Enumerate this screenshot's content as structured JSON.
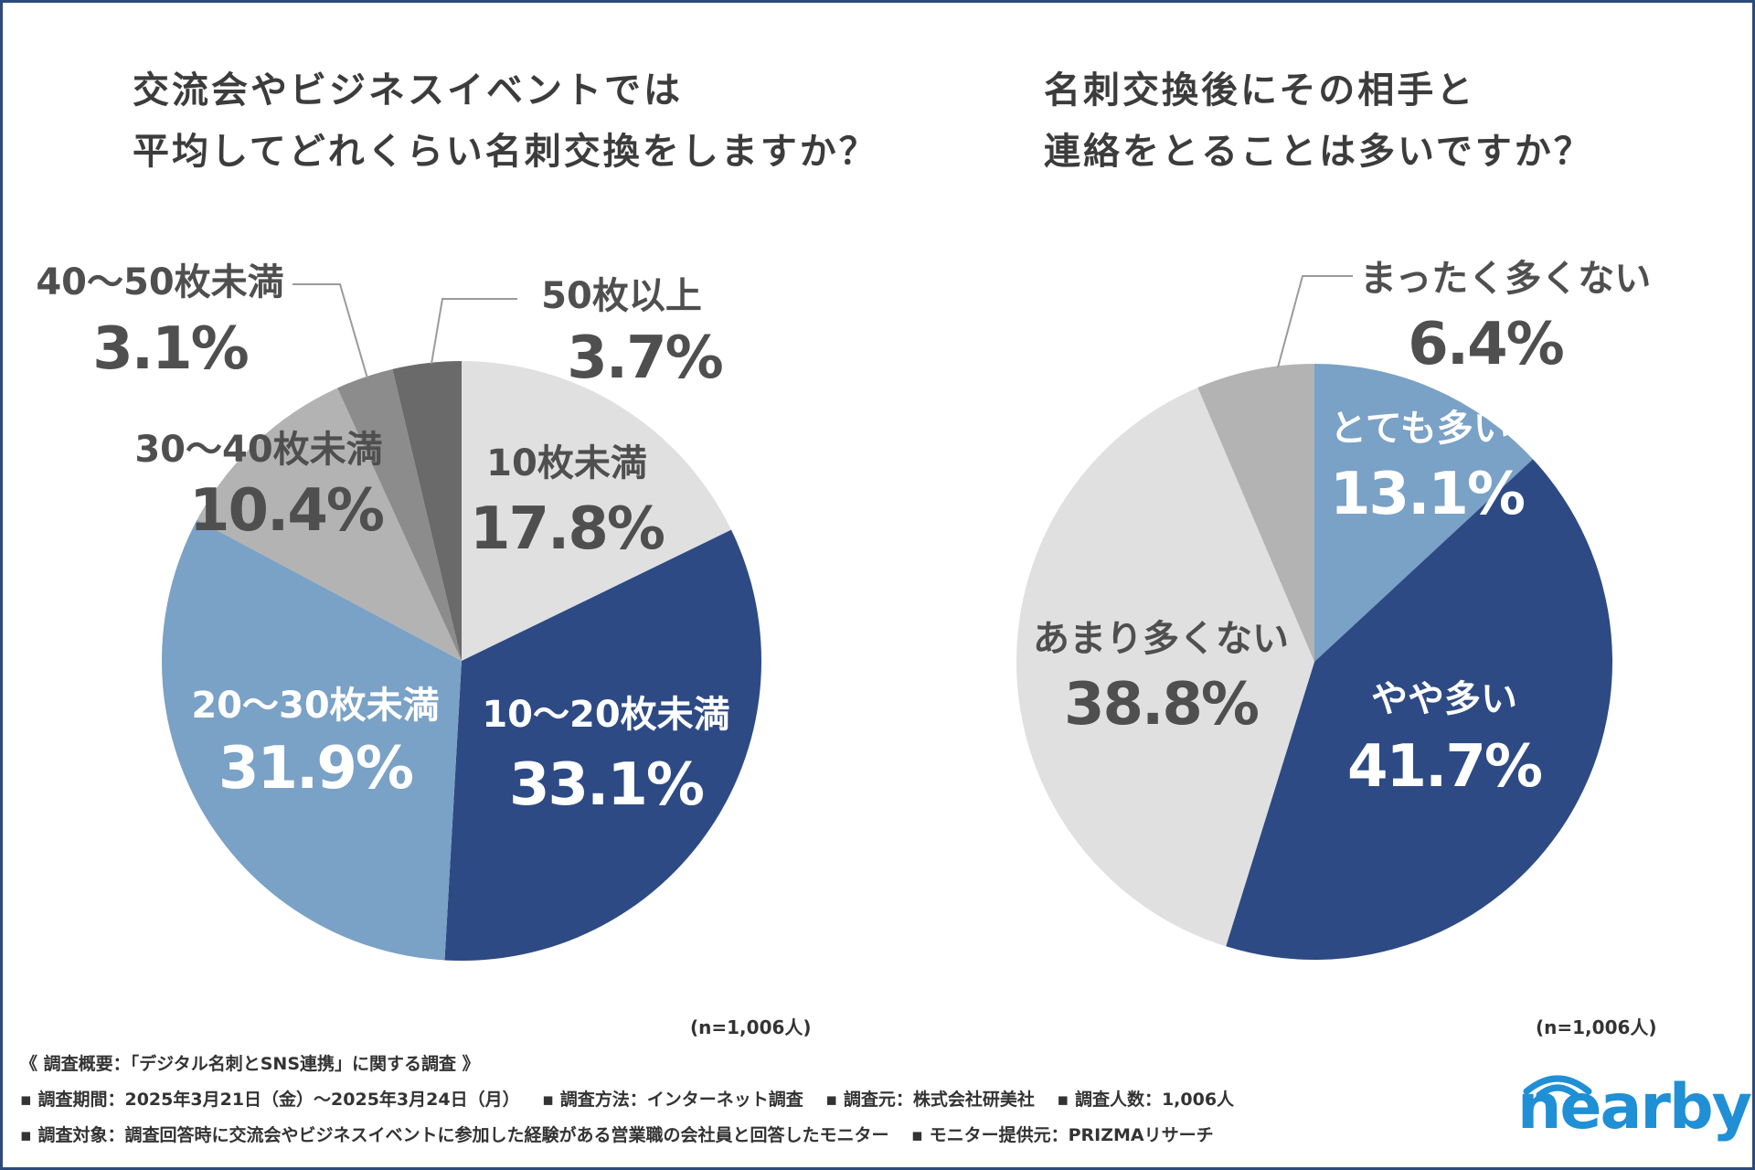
{
  "colors": {
    "navy": "#2d4a84",
    "steel": "#7aa1c6",
    "light": "#e0e0e0",
    "mid": "#b3b3b3",
    "dark": "#8c8c8c",
    "darkest": "#6a6a6a",
    "white_text": "#ffffff",
    "grey_text": "#4f4f4f",
    "logo": "#1f8fd6"
  },
  "left_title": {
    "line1": "交流会やビジネスイベントでは",
    "line2": "平均してどれくらい名刺交換をしますか？"
  },
  "right_title": {
    "line1": "名刺交換後にその相手と",
    "line2": "連絡をとることは多いですか？"
  },
  "chart_data": [
    {
      "type": "pie",
      "title": "交流会やビジネスイベントでは平均してどれくらい名刺交換をしますか？",
      "start": "12 o'clock, clockwise",
      "categories": [
        "10枚未満",
        "10〜20枚未満",
        "20〜30枚未満",
        "30〜40枚未満",
        "40〜50枚未満",
        "50枚以上"
      ],
      "values": [
        17.8,
        33.1,
        31.9,
        10.4,
        3.1,
        3.7
      ],
      "value_labels": [
        "17.8%",
        "33.1%",
        "31.9%",
        "10.4%",
        "3.1%",
        "3.7%"
      ],
      "color_keys": [
        "light",
        "navy",
        "steel",
        "mid",
        "dark",
        "darkest"
      ],
      "n_note": "(n=1,006人)"
    },
    {
      "type": "pie",
      "title": "名刺交換後にその相手と連絡をとることは多いですか？",
      "start": "12 o'clock, clockwise",
      "categories": [
        "とても多い",
        "やや多い",
        "あまり多くない",
        "まったく多くない"
      ],
      "values": [
        13.1,
        41.7,
        38.8,
        6.4
      ],
      "value_labels": [
        "13.1%",
        "41.7%",
        "38.8%",
        "6.4%"
      ],
      "color_keys": [
        "steel",
        "navy",
        "light",
        "mid"
      ],
      "n_note": "(n=1,006人)"
    }
  ],
  "footer": {
    "heading": "《 調査概要：「デジタル名刺とSNS連携」に関する調査 》",
    "period": "▪ 調査期間：2025年3月21日（金）〜2025年3月24日（月）",
    "method": "▪ 調査方法：インターネット調査",
    "source": "▪ 調査元：株式会社研美社",
    "count": "▪ 調査人数：1,006人",
    "target": "▪ 調査対象：調査回答時に交流会やビジネスイベントに参加した経験がある営業職の会社員と回答したモニター",
    "provider": "▪ モニター提供元：PRIZMAリサーチ"
  },
  "logo": {
    "text": "nearby"
  }
}
